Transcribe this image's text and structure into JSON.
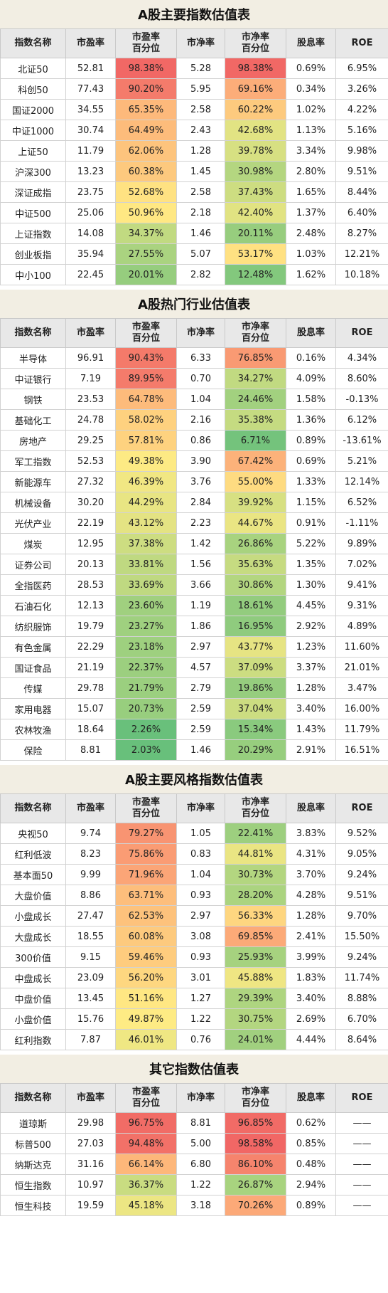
{
  "columns": [
    "指数名称",
    "市盈率",
    "市盈率\n百分位",
    "市净率",
    "市净率\n百分位",
    "股息率",
    "ROE"
  ],
  "sections": [
    {
      "title": "A股主要指数估值表",
      "rows": [
        [
          "北证50",
          "52.81",
          "98.38%",
          "5.28",
          "98.38%",
          "0.69%",
          "6.95%"
        ],
        [
          "科创50",
          "77.43",
          "90.20%",
          "5.95",
          "69.16%",
          "0.34%",
          "3.26%"
        ],
        [
          "国证2000",
          "34.55",
          "65.35%",
          "2.58",
          "60.22%",
          "1.02%",
          "4.22%"
        ],
        [
          "中证1000",
          "30.74",
          "64.49%",
          "2.43",
          "42.68%",
          "1.13%",
          "5.16%"
        ],
        [
          "上证50",
          "11.79",
          "62.06%",
          "1.28",
          "39.78%",
          "3.34%",
          "9.98%"
        ],
        [
          "沪深300",
          "13.23",
          "60.38%",
          "1.45",
          "30.98%",
          "2.80%",
          "9.51%"
        ],
        [
          "深证成指",
          "23.75",
          "52.68%",
          "2.58",
          "37.43%",
          "1.65%",
          "8.44%"
        ],
        [
          "中证500",
          "25.06",
          "50.96%",
          "2.18",
          "42.40%",
          "1.37%",
          "6.40%"
        ],
        [
          "上证指数",
          "14.08",
          "34.37%",
          "1.46",
          "20.11%",
          "2.48%",
          "8.27%"
        ],
        [
          "创业板指",
          "35.94",
          "27.55%",
          "5.07",
          "53.17%",
          "1.03%",
          "12.21%"
        ],
        [
          "中小100",
          "22.45",
          "20.01%",
          "2.82",
          "12.48%",
          "1.62%",
          "10.18%"
        ]
      ]
    },
    {
      "title": "A股热门行业估值表",
      "rows": [
        [
          "半导体",
          "96.91",
          "90.43%",
          "6.33",
          "76.85%",
          "0.16%",
          "4.34%"
        ],
        [
          "中证银行",
          "7.19",
          "89.95%",
          "0.70",
          "34.27%",
          "4.09%",
          "8.60%"
        ],
        [
          "钢铁",
          "23.53",
          "64.78%",
          "1.04",
          "24.46%",
          "1.58%",
          "-0.13%"
        ],
        [
          "基础化工",
          "24.78",
          "58.02%",
          "2.16",
          "35.38%",
          "1.36%",
          "6.12%"
        ],
        [
          "房地产",
          "29.25",
          "57.81%",
          "0.86",
          "6.71%",
          "0.89%",
          "-13.61%"
        ],
        [
          "军工指数",
          "52.53",
          "49.38%",
          "3.90",
          "67.42%",
          "0.69%",
          "5.21%"
        ],
        [
          "新能源车",
          "27.32",
          "46.39%",
          "3.76",
          "55.00%",
          "1.33%",
          "12.14%"
        ],
        [
          "机械设备",
          "30.20",
          "44.29%",
          "2.84",
          "39.92%",
          "1.15%",
          "6.52%"
        ],
        [
          "光伏产业",
          "22.19",
          "43.12%",
          "2.23",
          "44.67%",
          "0.91%",
          "-1.11%"
        ],
        [
          "煤炭",
          "12.95",
          "37.38%",
          "1.42",
          "26.86%",
          "5.22%",
          "9.89%"
        ],
        [
          "证券公司",
          "20.13",
          "33.81%",
          "1.56",
          "35.63%",
          "1.35%",
          "7.02%"
        ],
        [
          "全指医药",
          "28.53",
          "33.69%",
          "3.66",
          "30.86%",
          "1.30%",
          "9.41%"
        ],
        [
          "石油石化",
          "12.13",
          "23.60%",
          "1.19",
          "18.61%",
          "4.45%",
          "9.31%"
        ],
        [
          "纺织服饰",
          "19.79",
          "23.27%",
          "1.86",
          "16.95%",
          "2.92%",
          "4.89%"
        ],
        [
          "有色金属",
          "22.29",
          "23.18%",
          "2.97",
          "43.77%",
          "1.23%",
          "11.60%"
        ],
        [
          "国证食品",
          "21.19",
          "22.37%",
          "4.57",
          "37.09%",
          "3.37%",
          "21.01%"
        ],
        [
          "传媒",
          "29.78",
          "21.79%",
          "2.79",
          "19.86%",
          "1.28%",
          "3.47%"
        ],
        [
          "家用电器",
          "15.07",
          "20.73%",
          "2.59",
          "37.04%",
          "3.40%",
          "16.00%"
        ],
        [
          "农林牧渔",
          "18.64",
          "2.26%",
          "2.59",
          "15.34%",
          "1.43%",
          "11.79%"
        ],
        [
          "保险",
          "8.81",
          "2.03%",
          "1.46",
          "20.29%",
          "2.91%",
          "16.51%"
        ]
      ]
    },
    {
      "title": "A股主要风格指数估值表",
      "rows": [
        [
          "央视50",
          "9.74",
          "79.27%",
          "1.05",
          "22.41%",
          "3.83%",
          "9.52%"
        ],
        [
          "红利低波",
          "8.23",
          "75.86%",
          "0.83",
          "44.81%",
          "4.31%",
          "9.05%"
        ],
        [
          "基本面50",
          "9.99",
          "71.96%",
          "1.04",
          "30.73%",
          "3.70%",
          "9.24%"
        ],
        [
          "大盘价值",
          "8.86",
          "63.71%",
          "0.93",
          "28.20%",
          "4.28%",
          "9.51%"
        ],
        [
          "小盘成长",
          "27.47",
          "62.53%",
          "2.97",
          "56.33%",
          "1.28%",
          "9.70%"
        ],
        [
          "大盘成长",
          "18.55",
          "60.08%",
          "3.08",
          "69.85%",
          "2.41%",
          "15.50%"
        ],
        [
          "300价值",
          "9.15",
          "59.46%",
          "0.93",
          "25.93%",
          "3.99%",
          "9.24%"
        ],
        [
          "中盘成长",
          "23.09",
          "56.20%",
          "3.01",
          "45.88%",
          "1.83%",
          "11.74%"
        ],
        [
          "中盘价值",
          "13.45",
          "51.16%",
          "1.27",
          "29.39%",
          "3.40%",
          "8.88%"
        ],
        [
          "小盘价值",
          "15.76",
          "49.87%",
          "1.22",
          "30.75%",
          "2.69%",
          "6.70%"
        ],
        [
          "红利指数",
          "7.87",
          "46.01%",
          "0.76",
          "24.01%",
          "4.44%",
          "8.64%"
        ]
      ]
    },
    {
      "title": "其它指数估值表",
      "rows": [
        [
          "道琼斯",
          "29.98",
          "96.75%",
          "8.81",
          "96.85%",
          "0.62%",
          "——"
        ],
        [
          "标普500",
          "27.03",
          "94.48%",
          "5.00",
          "98.58%",
          "0.85%",
          "——"
        ],
        [
          "纳斯达克",
          "31.16",
          "66.14%",
          "6.80",
          "86.10%",
          "0.48%",
          "——"
        ],
        [
          "恒生指数",
          "10.97",
          "36.37%",
          "1.22",
          "26.87%",
          "2.94%",
          "——"
        ],
        [
          "恒生科技",
          "19.59",
          "45.18%",
          "3.18",
          "70.26%",
          "0.89%",
          "——"
        ]
      ]
    }
  ]
}
